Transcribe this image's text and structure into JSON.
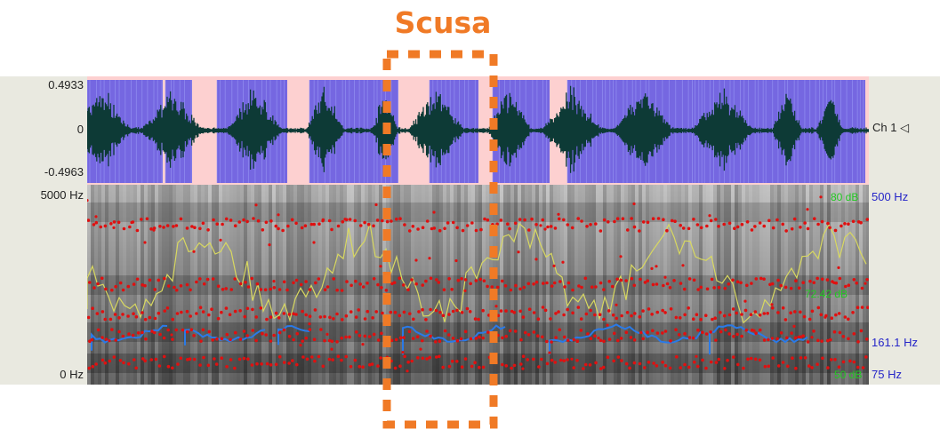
{
  "annotation": {
    "word": "Scusa",
    "color": "#f07a26"
  },
  "waveform": {
    "max_label": "0.4933",
    "zero_label": "0",
    "min_label": "-0.4963",
    "channel_label": "Ch 1 ◁",
    "background_color": "#fdd0d0",
    "selection_color": "#3a3ae8",
    "wave_color": "#0d3a36"
  },
  "spectrogram": {
    "top_label": "5000 Hz",
    "bottom_label": "0 Hz",
    "formant_color": "#e01010",
    "pitch_color": "#2a7ae8",
    "intensity_color": "#d8d860"
  },
  "right_axis": {
    "formant_top": "500 Hz",
    "pitch_value": "161.1 Hz",
    "pitch_bottom": "75 Hz",
    "intensity_top": "80 dB",
    "intensity_mid": "72.42 dB",
    "intensity_bottom": "50 dB"
  }
}
